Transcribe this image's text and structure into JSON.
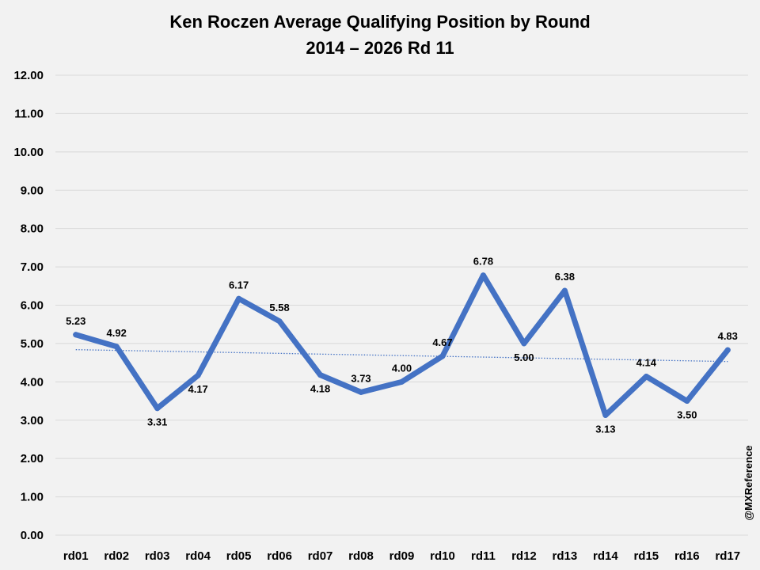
{
  "chart_data": {
    "type": "line",
    "title": "Ken Roczen Average Qualifying Position by Round",
    "subtitle": "2014 – 2026 Rd 11",
    "xlabel": "",
    "ylabel": "",
    "categories": [
      "rd01",
      "rd02",
      "rd03",
      "rd04",
      "rd05",
      "rd06",
      "rd07",
      "rd08",
      "rd09",
      "rd10",
      "rd11",
      "rd12",
      "rd13",
      "rd14",
      "rd15",
      "rd16",
      "rd17"
    ],
    "series": [
      {
        "values": [
          5.23,
          4.92,
          3.31,
          4.17,
          6.17,
          5.58,
          4.18,
          3.73,
          4.0,
          4.67,
          6.78,
          5.0,
          6.38,
          3.13,
          4.14,
          3.5,
          4.83
        ],
        "labels": [
          "5.23",
          "4.92",
          "3.31",
          "4.17",
          "6.17",
          "5.58",
          "4.18",
          "3.73",
          "4.00",
          "4.67",
          "6.78",
          "5.00",
          "6.38",
          "3.13",
          "4.14",
          "3.50",
          "4.83"
        ],
        "label_positions": [
          "above",
          "above",
          "below",
          "below",
          "above",
          "above",
          "below",
          "above",
          "above",
          "above",
          "above",
          "below",
          "above",
          "below",
          "above",
          "below",
          "above"
        ],
        "color": "#4472c4"
      }
    ],
    "trendline": {
      "type": "linear",
      "start_value": 4.84,
      "end_value": 4.53,
      "color": "#4472c4",
      "style": "dotted"
    },
    "ylim": [
      0,
      12
    ],
    "yticks": [
      "0.00",
      "1.00",
      "2.00",
      "3.00",
      "4.00",
      "5.00",
      "6.00",
      "7.00",
      "8.00",
      "9.00",
      "10.00",
      "11.00",
      "12.00"
    ],
    "grid": true,
    "legend": "none",
    "gridline_color": "#d9d9d9",
    "background_color": "#f2f2f2"
  },
  "watermark": "@MXReference"
}
